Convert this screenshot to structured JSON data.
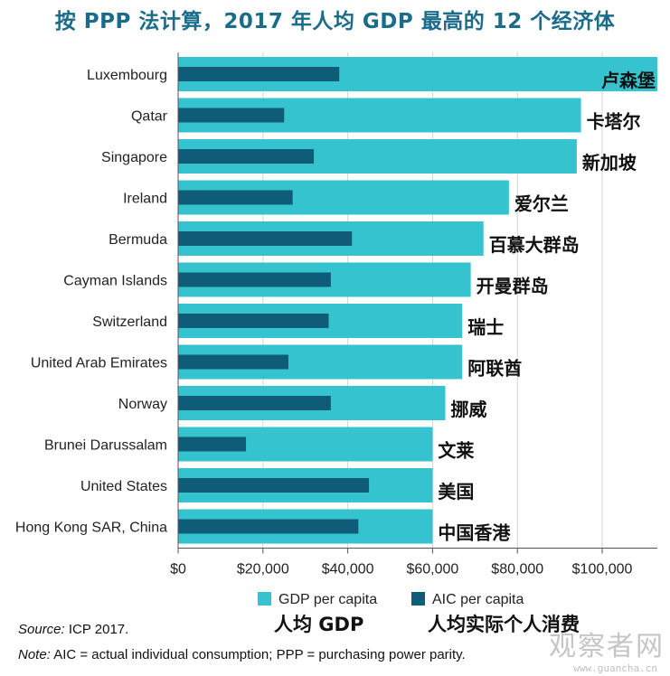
{
  "title": "按 PPP 法计算，2017 年人均 GDP 最高的 12 个经济体",
  "colors": {
    "gdp": "#36c3d0",
    "aic": "#0f5c78",
    "axis": "#555555",
    "title": "#1a6c8a"
  },
  "chart_data": {
    "type": "bar",
    "orientation": "horizontal",
    "categories": [
      "Luxembourg",
      "Qatar",
      "Singapore",
      "Ireland",
      "Bermuda",
      "Cayman Islands",
      "Switzerland",
      "United Arab Emirates",
      "Norway",
      "Brunei Darussalam",
      "United States",
      "Hong Kong SAR, China"
    ],
    "categories_zh": [
      "卢森堡",
      "卡塔尔",
      "新加坡",
      "爱尔兰",
      "百慕大群岛",
      "开曼群岛",
      "瑞士",
      "阿联酋",
      "挪威",
      "文莱",
      "美国",
      "中国香港"
    ],
    "series": [
      {
        "name": "GDP per capita",
        "name_zh": "人均 GDP",
        "values": [
          113000,
          95000,
          94000,
          78000,
          72000,
          69000,
          67000,
          67000,
          63000,
          60000,
          60000,
          60000
        ]
      },
      {
        "name": "AIC per capita",
        "name_zh": "人均实际个人消费",
        "values": [
          38000,
          25000,
          32000,
          27000,
          41000,
          36000,
          35500,
          26000,
          36000,
          16000,
          45000,
          42500
        ]
      }
    ],
    "xlim": [
      0,
      113000
    ],
    "xticks": [
      0,
      20000,
      40000,
      60000,
      80000,
      100000
    ],
    "xtick_labels": [
      "$0",
      "$20,000",
      "$40,000",
      "$60,000",
      "$80,000",
      "$100,000"
    ],
    "legend_position": "bottom",
    "grid": true
  },
  "footer": {
    "source_label": "Source:",
    "source_text": " ICP 2017.",
    "note_label": "Note:",
    "note_text": " AIC = actual individual consumption; PPP = purchasing power parity."
  },
  "watermark": {
    "text": "观察者网",
    "url": "www.guancha.cn"
  }
}
